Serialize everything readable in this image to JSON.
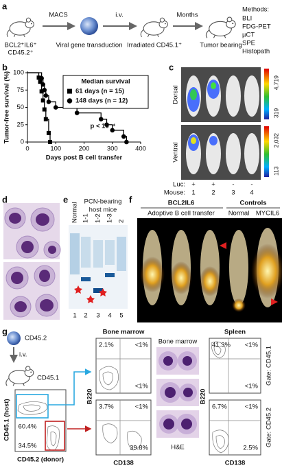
{
  "panel_labels": [
    "a",
    "b",
    "c",
    "d",
    "e",
    "f",
    "g"
  ],
  "panel_a": {
    "steps": [
      {
        "lines": [
          "BCL2⁺IL6⁺",
          "CD45.2⁺"
        ]
      },
      {
        "lines": [
          "Viral gene transduction"
        ]
      },
      {
        "lines": [
          "Irradiated CD45.1⁺"
        ]
      },
      {
        "lines": [
          "Tumor bearing"
        ]
      }
    ],
    "arrows": [
      "MACS",
      "i.v.",
      "Months"
    ],
    "methods_title": "Methods:",
    "methods": [
      "BLI",
      "FDG-PET",
      "µCT",
      "SPE",
      "Histopath"
    ]
  },
  "chart_data": {
    "type": "line",
    "drawstyle": "steps-post",
    "xlabel": "Days post B cell transfer",
    "ylabel": "Tumor-free survival (%)",
    "legend_title": "Median survival",
    "annotation": "p < 10⁻⁴",
    "xlim": [
      0,
      400
    ],
    "xticks": [
      0,
      100,
      200,
      300,
      400
    ],
    "ylim": [
      0,
      100
    ],
    "yticks": [
      0,
      25,
      50,
      75,
      100
    ],
    "series": [
      {
        "name": "61 days (n = 15)",
        "color": "#000000",
        "marker": "square",
        "x": [
          0,
          40,
          45,
          50,
          55,
          60,
          65,
          75,
          80
        ],
        "values": [
          100,
          93,
          87,
          73,
          60,
          47,
          33,
          13,
          0
        ]
      },
      {
        "name": "148 days (n = 12)",
        "color": "#000000",
        "marker": "circle",
        "x": [
          0,
          50,
          55,
          60,
          65,
          75,
          100,
          175,
          260,
          280,
          300,
          340,
          350
        ],
        "values": [
          100,
          92,
          83,
          75,
          67,
          58,
          50,
          42,
          33,
          25,
          17,
          8,
          0
        ]
      }
    ]
  },
  "panel_c": {
    "dorsal": "Dorsal",
    "ventral": "Ventral",
    "dorsal_scale": [
      "4,719",
      "319"
    ],
    "ventral_scale": [
      "2,032",
      "113"
    ],
    "luc_label": "Luc:",
    "luc": [
      "+",
      "+",
      "-",
      "-"
    ],
    "mouse_label": "Mouse:",
    "mice": [
      "1",
      "2",
      "3",
      "4"
    ]
  },
  "panel_e": {
    "title": [
      "PCN-bearing",
      "host mice"
    ],
    "lanes": [
      "Normal",
      "1-1",
      "1-2",
      "1-3",
      "2"
    ],
    "lane_numbers": [
      "1",
      "2",
      "3",
      "4",
      "5"
    ]
  },
  "panel_f": {
    "group1": "BCL2IL6",
    "group1_sub": "Adoptive B cell transfer",
    "group2": "Controls",
    "controls": [
      "Normal",
      "MYCIL6"
    ]
  },
  "panel_g": {
    "donor": "CD45.2",
    "route": "i.v.",
    "host": "CD45.1",
    "gate_plot": {
      "ylabel": "CD45.1 (host)",
      "xlabel": "CD45.2 (donor)",
      "host_pct": "60.4%",
      "donor_pct": "34.5%"
    },
    "bone_marrow": {
      "title": "Bone marrow",
      "ylabel": "B220",
      "xlabel": "CD138",
      "upper": [
        "2.1%",
        "<1%",
        "<1%"
      ],
      "lower": [
        "3.7%",
        "<1%",
        "39.8%"
      ]
    },
    "histology": {
      "title": "Bone marrow",
      "caption": "H&E"
    },
    "spleen": {
      "title": "Spleen",
      "ylabel": "B220",
      "xlabel": "CD138",
      "upper": [
        "41.3%",
        "<1%",
        "<1%"
      ],
      "lower": [
        "6.7%",
        "<1%",
        "2.5%"
      ],
      "gates": [
        "Gate: CD45.1",
        "Gate: CD45.2"
      ]
    }
  }
}
